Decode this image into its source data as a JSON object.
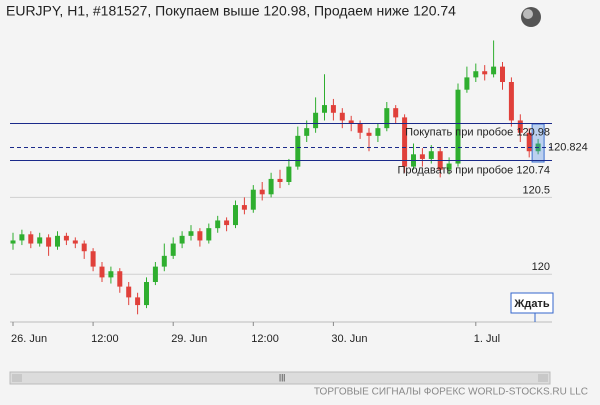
{
  "chart_data": {
    "type": "candlestick",
    "title": "EURJPY, H1, #181527, Покупаем выше 120.98, Продаем ниже 120.74",
    "open": [
      120.2,
      120.22,
      120.26,
      120.2,
      120.24,
      120.18,
      120.25,
      120.22,
      120.2,
      120.15,
      120.05,
      119.98,
      120.02,
      119.92,
      119.85,
      119.8,
      119.95,
      120.05,
      120.12,
      120.2,
      120.25,
      120.28,
      120.22,
      120.3,
      120.35,
      120.32,
      120.45,
      120.42,
      120.55,
      120.52,
      120.62,
      120.6,
      120.7,
      120.9,
      120.95,
      121.05,
      121.1,
      121.05,
      121.0,
      120.98,
      120.92,
      120.9,
      120.95,
      121.08,
      121.02,
      120.7,
      120.78,
      120.75,
      120.8,
      120.68,
      120.72,
      121.2,
      121.28,
      121.32,
      121.3,
      121.35,
      121.25,
      121.0,
      120.92,
      120.8
    ],
    "high": [
      120.27,
      120.29,
      120.28,
      120.27,
      120.26,
      120.28,
      120.27,
      120.24,
      120.22,
      120.17,
      120.08,
      120.05,
      120.04,
      119.95,
      119.88,
      119.98,
      120.08,
      120.2,
      120.24,
      120.28,
      120.32,
      120.3,
      120.33,
      120.38,
      120.37,
      120.48,
      120.5,
      120.58,
      120.6,
      120.66,
      120.68,
      120.75,
      120.96,
      121.0,
      121.15,
      121.3,
      121.14,
      121.08,
      121.03,
      121.0,
      120.95,
      120.98,
      121.12,
      121.1,
      121.04,
      120.85,
      120.82,
      120.84,
      120.82,
      120.76,
      121.24,
      121.35,
      121.37,
      121.36,
      121.52,
      121.38,
      121.28,
      121.04,
      120.95,
      120.88
    ],
    "low": [
      120.16,
      120.19,
      120.17,
      120.18,
      120.12,
      120.16,
      120.19,
      120.17,
      120.1,
      120.02,
      119.95,
      119.94,
      119.88,
      119.8,
      119.74,
      119.78,
      119.93,
      120.02,
      120.1,
      120.17,
      120.22,
      120.18,
      120.2,
      120.27,
      120.28,
      120.3,
      120.39,
      120.4,
      120.48,
      120.5,
      120.56,
      120.58,
      120.68,
      120.86,
      120.92,
      121.0,
      121.0,
      120.95,
      120.93,
      120.88,
      120.8,
      120.86,
      120.93,
      120.98,
      120.66,
      120.68,
      120.7,
      120.72,
      120.63,
      120.65,
      120.7,
      121.18,
      121.25,
      121.26,
      121.28,
      121.2,
      120.96,
      120.86,
      120.76,
      120.78
    ],
    "close": [
      120.22,
      120.26,
      120.2,
      120.24,
      120.18,
      120.25,
      120.22,
      120.2,
      120.15,
      120.05,
      119.98,
      120.02,
      119.92,
      119.85,
      119.8,
      119.95,
      120.05,
      120.12,
      120.2,
      120.25,
      120.28,
      120.22,
      120.3,
      120.35,
      120.32,
      120.45,
      120.42,
      120.55,
      120.52,
      120.62,
      120.6,
      120.7,
      120.9,
      120.95,
      121.05,
      121.1,
      121.05,
      121.0,
      120.98,
      120.92,
      120.9,
      120.95,
      121.08,
      121.02,
      120.7,
      120.78,
      120.75,
      120.8,
      120.68,
      120.72,
      121.2,
      121.28,
      121.32,
      121.3,
      121.35,
      121.25,
      121.0,
      120.92,
      120.8,
      120.85
    ],
    "up_color": "#2fae2f",
    "down_color": "#e0403a",
    "ylim": [
      119.69,
      121.64
    ],
    "yticks": [
      120,
      120.5
    ],
    "xticks": [
      {
        "value": 0,
        "label": "26. Jun"
      },
      {
        "value": 9,
        "label": "12:00"
      },
      {
        "value": 18,
        "label": "29. Jun"
      },
      {
        "value": 27,
        "label": "12:00"
      },
      {
        "value": 36,
        "label": "30. Jun"
      },
      {
        "value": 52,
        "label": "1. Jul"
      }
    ],
    "levels": [
      {
        "label": "Покупать при пробое 120.98",
        "value": 120.98
      },
      {
        "label": "Продавать при пробое 120.74",
        "value": 120.74
      }
    ],
    "current": {
      "label": "120.824",
      "value": 120.824
    },
    "button": "Ждать",
    "footer": "ТОРГОВЫЕ СИГНАЛЫ ФОРЕКС WORLD-STOCKS.RU LLC"
  }
}
